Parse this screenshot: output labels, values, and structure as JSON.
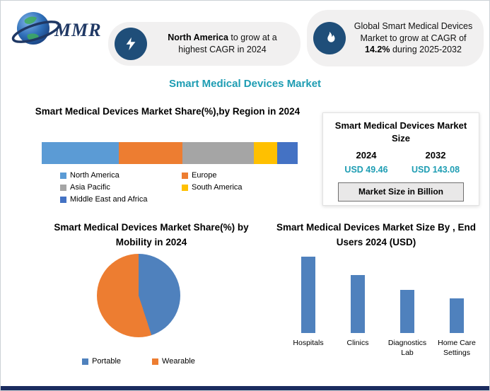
{
  "page": {
    "title": "Smart Medical Devices Market",
    "accent_color": "#1e9db3",
    "footer_bar_color": "#1b2c5f"
  },
  "logo": {
    "text": "MMR"
  },
  "callouts": [
    {
      "icon": "lightning-icon",
      "bold": "North America",
      "rest": " to grow at a highest CAGR in 2024"
    },
    {
      "icon": "flame-icon",
      "pre": "Global Smart Medical Devices Market to grow at CAGR of ",
      "bold": "14.2%",
      "post": " during 2025-2032"
    }
  ],
  "market_size_card": {
    "title": "Smart Medical Devices Market Size",
    "columns": [
      {
        "year": "2024",
        "value": "USD 49.46"
      },
      {
        "year": "2032",
        "value": "USD 143.08"
      }
    ],
    "note": "Market Size in Billion",
    "value_color": "#1e9db3"
  },
  "chart_data": [
    {
      "type": "bar",
      "subtype": "stacked-horizontal",
      "title": "Smart Medical Devices Market Share(%),by Region in 2024",
      "categories": [
        "2024"
      ],
      "series": [
        {
          "name": "North America",
          "values": [
            30
          ],
          "color": "#5b9bd5"
        },
        {
          "name": "Europe",
          "values": [
            25
          ],
          "color": "#ed7d31"
        },
        {
          "name": "Asia Pacific",
          "values": [
            28
          ],
          "color": "#a5a5a5"
        },
        {
          "name": "South America",
          "values": [
            9
          ],
          "color": "#ffc000"
        },
        {
          "name": "Middle East and Africa",
          "values": [
            8
          ],
          "color": "#4472c4"
        }
      ],
      "xlim": [
        0,
        100
      ],
      "legend_position": "bottom",
      "grid": false
    },
    {
      "type": "pie",
      "title": "Smart Medical Devices Market Share(%) by Mobility in 2024",
      "labels": [
        "Portable",
        "Wearable"
      ],
      "values": [
        45,
        55
      ],
      "colors": [
        "#4f81bd",
        "#ed7d31"
      ],
      "legend_position": "bottom"
    },
    {
      "type": "bar",
      "title": "Smart Medical Devices Market Size By , End Users 2024 (USD)",
      "categories": [
        "Hospitals",
        "Clinics",
        "Diagnostics Lab",
        "Home Care Settings"
      ],
      "values": [
        110,
        83,
        62,
        50
      ],
      "color": "#4f81bd",
      "ylim": [
        0,
        120
      ],
      "grid": false
    }
  ]
}
